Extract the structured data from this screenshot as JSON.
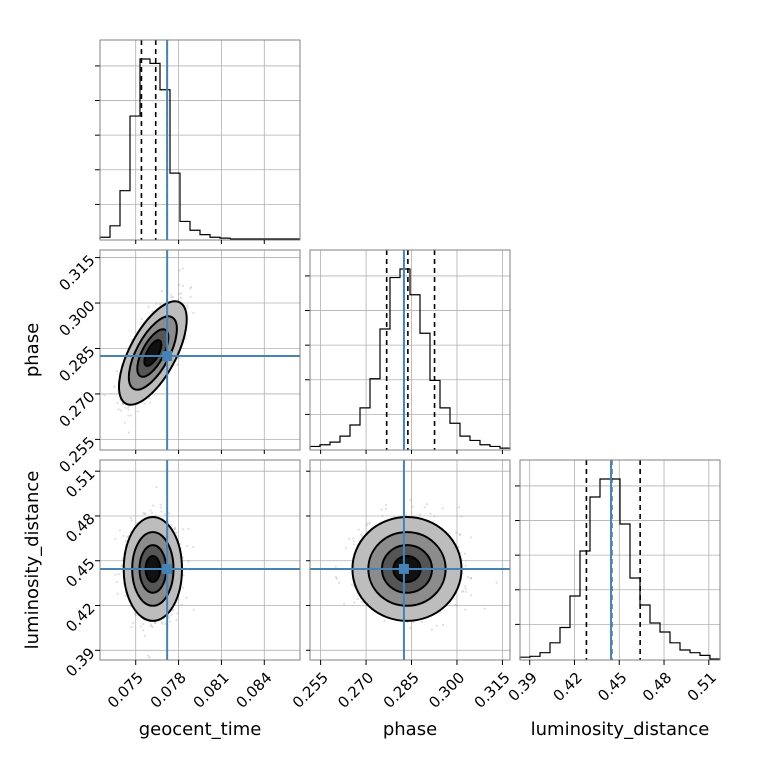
{
  "chart_data": {
    "type": "corner",
    "parameters": [
      "geocent_time",
      "phase",
      "luminosity_distance"
    ],
    "truths": {
      "geocent_time": 0.0772,
      "phase": 0.2825,
      "luminosity_distance": 0.4445
    },
    "truth_color": "#4682b4",
    "ranges": {
      "geocent_time": [
        0.0725,
        0.0865
      ],
      "phase": [
        0.2515,
        0.3175
      ],
      "luminosity_distance": [
        0.3835,
        0.5175
      ]
    },
    "ticks": {
      "geocent_time": [
        0.075,
        0.078,
        0.081,
        0.084
      ],
      "phase": [
        0.255,
        0.27,
        0.285,
        0.3,
        0.315
      ],
      "luminosity_distance": [
        0.39,
        0.42,
        0.45,
        0.48,
        0.51
      ]
    },
    "tick_labels": {
      "geocent_time": [
        "0.075",
        "0.078",
        "0.081",
        "0.084"
      ],
      "phase": [
        "0.255",
        "0.270",
        "0.285",
        "0.300",
        "0.315"
      ],
      "luminosity_distance": [
        "0.39",
        "0.42",
        "0.45",
        "0.48",
        "0.51"
      ]
    },
    "axis_labels": {
      "x": [
        "geocent_time",
        "phase",
        "luminosity_distance"
      ],
      "y": [
        "phase",
        "luminosity_distance"
      ]
    },
    "quantiles": {
      "geocent_time": [
        0.0754,
        0.0764,
        0.0772
      ],
      "phase": [
        0.2768,
        0.2838,
        0.2926
      ],
      "luminosity_distance": [
        0.428,
        0.4449,
        0.464
      ]
    },
    "histograms": {
      "geocent_time": {
        "bin_edges": [
          0.0725,
          0.0732,
          0.0739,
          0.0746,
          0.0753,
          0.076,
          0.0767,
          0.0774,
          0.0781,
          0.0788,
          0.0795,
          0.0802,
          0.0809,
          0.0816
        ],
        "counts": [
          2,
          15,
          55,
          140,
          205,
          200,
          170,
          75,
          20,
          10,
          5,
          2,
          1
        ]
      },
      "phase": {
        "bin_edges": [
          0.2515,
          0.2548,
          0.2581,
          0.2614,
          0.2647,
          0.268,
          0.2713,
          0.2746,
          0.2779,
          0.2812,
          0.2845,
          0.2878,
          0.2911,
          0.2944,
          0.2977,
          0.301,
          0.3043,
          0.3076,
          0.3109,
          0.3142,
          0.3175
        ],
        "counts": [
          3,
          5,
          8,
          15,
          28,
          48,
          82,
          140,
          200,
          210,
          180,
          135,
          80,
          48,
          30,
          15,
          10,
          5,
          3,
          1
        ]
      },
      "luminosity_distance": {
        "bin_edges": [
          0.3835,
          0.3902,
          0.3969,
          0.4036,
          0.4103,
          0.417,
          0.4237,
          0.4304,
          0.4371,
          0.4438,
          0.4505,
          0.4572,
          0.4639,
          0.4706,
          0.4773,
          0.484,
          0.4907,
          0.4974,
          0.5041,
          0.5108,
          0.5175
        ],
        "counts": [
          2,
          3,
          7,
          18,
          35,
          70,
          120,
          180,
          200,
          200,
          150,
          90,
          60,
          40,
          30,
          18,
          10,
          7,
          4,
          0
        ]
      }
    },
    "joint": {
      "phase_vs_geocent_time": {
        "mean": [
          0.0762,
          0.2835
        ],
        "sd": [
          0.00085,
          0.0075
        ],
        "rho": 0.72
      },
      "luminosity_distance_vs_geocent_time": {
        "mean": [
          0.0762,
          0.4445
        ],
        "sd": [
          0.00085,
          0.0145
        ],
        "rho": 0.0
      },
      "luminosity_distance_vs_phase": {
        "mean": [
          0.2835,
          0.4445
        ],
        "sd": [
          0.0075,
          0.0145
        ],
        "rho": 0.0
      }
    },
    "grid": true
  }
}
